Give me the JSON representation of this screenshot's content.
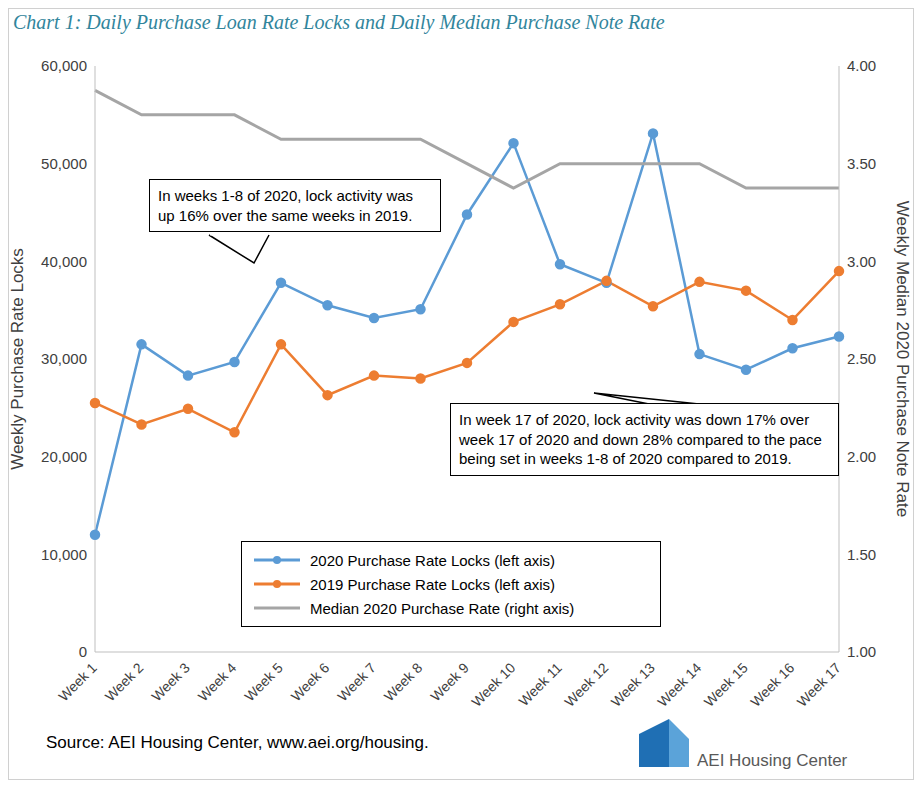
{
  "chart_data": {
    "type": "line",
    "title": "Chart 1: Daily Purchase Loan Rate Locks and Daily Median Purchase Note Rate",
    "categories": [
      "Week 1",
      "Week 2",
      "Week 3",
      "Week 4",
      "Week 5",
      "Week 6",
      "Week 7",
      "Week 8",
      "Week 9",
      "Week 10",
      "Week 11",
      "Week 12",
      "Week 13",
      "Week 14",
      "Week 15",
      "Week 16",
      "Week 17"
    ],
    "series": [
      {
        "name": "2020 Purchase Rate Locks (left axis)",
        "color": "#5B9BD5",
        "marker": "circle",
        "line_style": "solid",
        "values": [
          12000,
          31500,
          28300,
          29700,
          37800,
          35500,
          34200,
          35100,
          44800,
          52100,
          39700,
          37800,
          53100,
          30500,
          28900,
          31100,
          32300
        ]
      },
      {
        "name": "2019 Purchase Rate Locks (left axis)",
        "color": "#ED7D31",
        "marker": "circle",
        "line_style": "solid",
        "values": [
          25500,
          23300,
          24900,
          22500,
          31500,
          26300,
          28300,
          28000,
          29600,
          33800,
          35600,
          38000,
          35400,
          37900,
          37000,
          34000,
          39000
        ]
      },
      {
        "name": "Median 2020 Purchase Rate (right axis)",
        "color": "#A5A5A5",
        "marker": "none",
        "line_style": "solid",
        "axis": "y2",
        "values": [
          3.875,
          3.75,
          3.75,
          3.75,
          3.625,
          3.625,
          3.625,
          3.625,
          3.5,
          3.375,
          3.5,
          3.5,
          3.5,
          3.5,
          3.375,
          3.375,
          3.375
        ]
      }
    ],
    "ylim": [
      0,
      60000
    ],
    "yticks": [
      0,
      {
        "value": 10000,
        "label": "10,000"
      },
      {
        "value": 20000,
        "label": "20,000"
      },
      {
        "value": 30000,
        "label": "30,000"
      },
      {
        "value": 40000,
        "label": "40,000"
      },
      {
        "value": 50000,
        "label": "50,000"
      },
      {
        "value": 60000,
        "label": "60,000"
      }
    ],
    "y2lim": [
      1,
      4
    ],
    "y2ticks": [
      {
        "value": 1,
        "label": "1.00"
      },
      {
        "value": 1.5,
        "label": "1.50"
      },
      {
        "value": 2,
        "label": "2.00"
      },
      {
        "value": 2.5,
        "label": "2.50"
      },
      {
        "value": 3,
        "label": "3.00"
      },
      {
        "value": 3.5,
        "label": "3.50"
      },
      {
        "value": 4,
        "label": "4.00"
      }
    ],
    "ylabel": "Weekly Purchase Rate Locks",
    "y2label": "Weekly Median 2020 Purchase Note Rate",
    "grid": false,
    "legend": "lower center",
    "annotations": [
      "In weeks 1-8 of 2020, lock activity was up 16% over the same weeks in 2019.",
      "In week 17 of 2020, lock activity was down 17% over week 17 of 2020 and down 28% compared to the pace being set in weeks 1-8 of 2020 compared to 2019."
    ],
    "source": "Source: AEI Housing Center, www.aei.org/housing.",
    "logo": "AEI Housing Center"
  }
}
